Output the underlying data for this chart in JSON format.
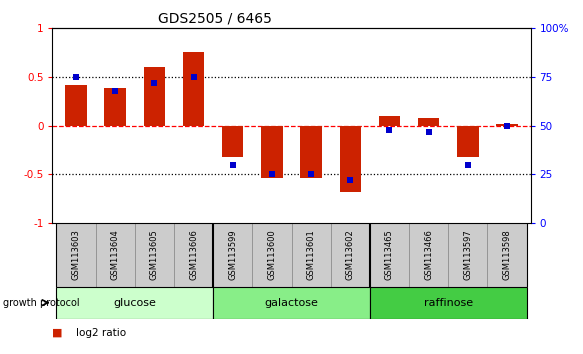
{
  "title": "GDS2505 / 6465",
  "samples": [
    "GSM113603",
    "GSM113604",
    "GSM113605",
    "GSM113606",
    "GSM113599",
    "GSM113600",
    "GSM113601",
    "GSM113602",
    "GSM113465",
    "GSM113466",
    "GSM113597",
    "GSM113598"
  ],
  "log2_ratio": [
    0.42,
    0.39,
    0.6,
    0.76,
    -0.32,
    -0.54,
    -0.54,
    -0.68,
    0.1,
    0.08,
    -0.32,
    0.02
  ],
  "percentile_rank": [
    75,
    68,
    72,
    75,
    30,
    25,
    25,
    22,
    48,
    47,
    30,
    50
  ],
  "groups": [
    {
      "label": "glucose",
      "start": 0,
      "end": 4,
      "color": "#ccffcc"
    },
    {
      "label": "galactose",
      "start": 4,
      "end": 8,
      "color": "#88ee88"
    },
    {
      "label": "raffinose",
      "start": 8,
      "end": 12,
      "color": "#44cc44"
    }
  ],
  "bar_color": "#cc2200",
  "dot_color": "#0000cc",
  "sample_box_color": "#cccccc",
  "ylim_left": [
    -1,
    1
  ],
  "ylim_right": [
    0,
    100
  ],
  "yticks_left": [
    -1,
    -0.5,
    0,
    0.5,
    1
  ],
  "ytick_labels_left": [
    "-1",
    "-0.5",
    "0",
    "0.5",
    "1"
  ],
  "yticks_right": [
    0,
    25,
    50,
    75,
    100
  ],
  "ytick_labels_right": [
    "0",
    "25",
    "50",
    "75",
    "100%"
  ],
  "hline_red": 0,
  "hline_dotted_values": [
    0.5,
    -0.5
  ],
  "bar_width": 0.55,
  "dot_size": 22,
  "title_fontsize": 10,
  "tick_fontsize": 7.5,
  "sample_fontsize": 6,
  "group_fontsize": 8,
  "legend_fontsize": 7.5
}
